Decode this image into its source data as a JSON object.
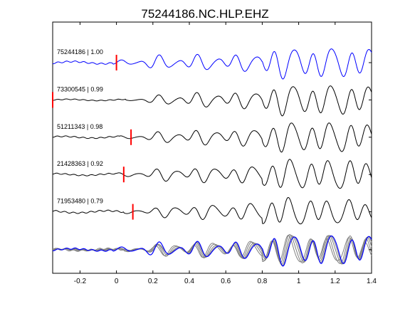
{
  "chart_data": {
    "type": "line",
    "title": "75244186.NC.HLP.EHZ",
    "xlim": [
      -0.35,
      1.4
    ],
    "xticks": [
      "-0.2",
      "0",
      "0.2",
      "0.4",
      "0.6",
      "0.8",
      "1",
      "1.2",
      "1.4"
    ],
    "xtick_values": [
      -0.2,
      0,
      0.2,
      0.4,
      0.6,
      0.8,
      1.0,
      1.2,
      1.4
    ],
    "grid": false,
    "colors": {
      "reference": "#0000ff",
      "trace": "#000000",
      "overlay": "#808080",
      "pick": "#ff0000"
    },
    "series": [
      {
        "name": "75244186 | 1.00",
        "pick_time": 0.0,
        "color": "#0000ff",
        "onset": -0.02,
        "ramp": 0.22,
        "pre_amp": 0.05,
        "phase": 0.0,
        "peak": 0.55,
        "decay": 0.0
      },
      {
        "name": "73300545 | 0.99",
        "pick_time": -0.35,
        "color": "#000000",
        "onset": 0.05,
        "ramp": 0.3,
        "pre_amp": 0.03,
        "phase": 0.2,
        "peak": 0.55,
        "decay": 0.0
      },
      {
        "name": "51211343 | 0.98",
        "pick_time": 0.08,
        "color": "#000000",
        "onset": 0.02,
        "ramp": 0.3,
        "pre_amp": 0.04,
        "phase": 0.5,
        "peak": 0.55,
        "decay": 0.0
      },
      {
        "name": "21428363 | 0.92",
        "pick_time": 0.04,
        "color": "#000000",
        "onset": 0.0,
        "ramp": 0.28,
        "pre_amp": 0.04,
        "phase": 0.9,
        "peak": 0.55,
        "decay": 0.0
      },
      {
        "name": "71953480 | 0.79",
        "pick_time": 0.09,
        "color": "#000000",
        "onset": 0.04,
        "ramp": 0.3,
        "pre_amp": 0.05,
        "phase": 1.3,
        "peak": 0.55,
        "decay": 0.25
      }
    ]
  }
}
